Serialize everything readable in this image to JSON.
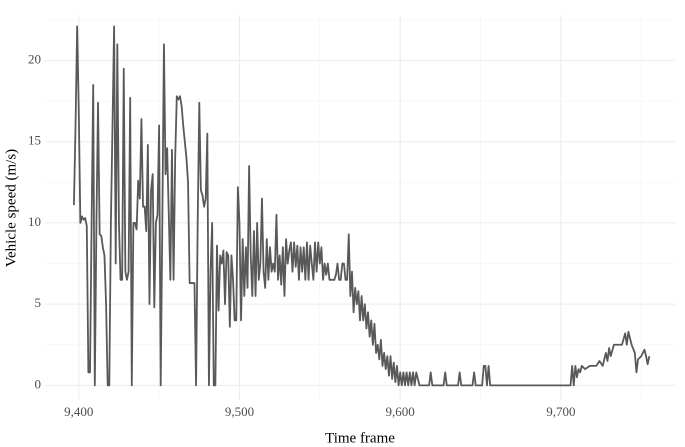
{
  "chart_data": {
    "type": "line",
    "x_label": "Time frame",
    "y_label": "Vehicle speed (m/s)",
    "x": [
      9397,
      9398,
      9399,
      9400,
      9401,
      9402,
      9403,
      9404,
      9405,
      9406,
      9407,
      9408,
      9409,
      9410,
      9411,
      9412,
      9413,
      9414,
      9415,
      9416,
      9417,
      9418,
      9419,
      9420,
      9421,
      9422,
      9423,
      9424,
      9425,
      9426,
      9427,
      9428,
      9429,
      9430,
      9431,
      9432,
      9433,
      9434,
      9435,
      9436,
      9437,
      9438,
      9439,
      9440,
      9441,
      9442,
      9443,
      9444,
      9445,
      9446,
      9447,
      9448,
      9449,
      9450,
      9451,
      9452,
      9453,
      9454,
      9455,
      9456,
      9457,
      9458,
      9459,
      9460,
      9461,
      9462,
      9463,
      9464,
      9465,
      9466,
      9467,
      9468,
      9469,
      9470,
      9471,
      9472,
      9473,
      9474,
      9475,
      9476,
      9477,
      9478,
      9479,
      9480,
      9481,
      9482,
      9483,
      9484,
      9485,
      9486,
      9487,
      9488,
      9489,
      9490,
      9491,
      9492,
      9493,
      9494,
      9495,
      9496,
      9497,
      9498,
      9499,
      9500,
      9501,
      9502,
      9503,
      9504,
      9505,
      9506,
      9507,
      9508,
      9509,
      9510,
      9511,
      9512,
      9513,
      9514,
      9515,
      9516,
      9517,
      9518,
      9519,
      9520,
      9521,
      9522,
      9523,
      9524,
      9525,
      9526,
      9527,
      9528,
      9529,
      9530,
      9531,
      9532,
      9533,
      9534,
      9535,
      9536,
      9537,
      9538,
      9539,
      9540,
      9541,
      9542,
      9543,
      9544,
      9545,
      9546,
      9547,
      9548,
      9549,
      9550,
      9551,
      9552,
      9553,
      9554,
      9555,
      9556,
      9557,
      9558,
      9559,
      9560,
      9561,
      9562,
      9563,
      9564,
      9565,
      9566,
      9567,
      9568,
      9569,
      9570,
      9571,
      9572,
      9573,
      9574,
      9575,
      9576,
      9577,
      9578,
      9579,
      9580,
      9581,
      9582,
      9583,
      9584,
      9585,
      9586,
      9587,
      9588,
      9589,
      9590,
      9591,
      9592,
      9593,
      9594,
      9595,
      9596,
      9597,
      9598,
      9599,
      9600,
      9601,
      9602,
      9603,
      9604,
      9605,
      9606,
      9607,
      9608,
      9609,
      9610,
      9612,
      9618,
      9619,
      9620,
      9627,
      9628,
      9629,
      9636,
      9637,
      9638,
      9645,
      9646,
      9647,
      9651,
      9652,
      9653,
      9654,
      9655,
      9656,
      9706,
      9707,
      9708,
      9709,
      9710,
      9711,
      9712,
      9713,
      9715,
      9718,
      9722,
      9724,
      9726,
      9728,
      9729,
      9730,
      9731,
      9733,
      9735,
      9738,
      9740,
      9741,
      9742,
      9744,
      9746,
      9747,
      9748,
      9750,
      9752,
      9753,
      9754,
      9755
    ],
    "series": [
      {
        "name": "speed",
        "color": "#595959",
        "values": [
          11.1,
          16,
          22.1,
          17,
          10,
          10.4,
          10.2,
          10.3,
          9.8,
          0.8,
          0.8,
          10,
          18.5,
          0,
          10,
          17.4,
          9.3,
          9.2,
          8.5,
          8,
          5,
          0,
          0,
          10,
          16,
          22.1,
          7.5,
          21,
          10,
          6.5,
          6.5,
          19.5,
          7,
          6.5,
          7,
          17.7,
          0,
          10,
          10,
          9.6,
          12.6,
          11.5,
          16.4,
          11,
          11,
          9.5,
          14.8,
          5,
          12,
          13,
          4.8,
          10,
          10.5,
          16,
          0,
          10,
          21,
          13,
          14.6,
          10.6,
          6.5,
          14.5,
          6.5,
          14,
          17.8,
          17.6,
          17.8,
          17.2,
          16,
          15,
          14,
          12.5,
          6.3,
          6.3,
          6.3,
          6.3,
          0,
          10,
          17.4,
          12,
          11.7,
          11,
          11.5,
          15.5,
          0,
          7,
          10,
          0,
          0,
          8.6,
          4.6,
          8,
          7.5,
          8.3,
          5,
          8.2,
          8,
          3.6,
          8,
          6.5,
          4,
          4,
          12.2,
          10,
          4,
          9,
          5.5,
          8.5,
          6,
          13.5,
          8,
          5.5,
          9.5,
          5.5,
          10,
          6.5,
          7.5,
          11.5,
          7,
          6,
          9,
          6.5,
          8.5,
          7,
          7.5,
          7,
          10.5,
          6.5,
          8,
          6.2,
          8.5,
          5.5,
          9,
          7.5,
          8.3,
          8.8,
          7,
          8.8,
          7.3,
          8.6,
          6.5,
          8.5,
          7,
          8.5,
          6.5,
          8.8,
          6.5,
          8.6,
          7.5,
          6.5,
          8.8,
          7,
          8.8,
          7.5,
          8.5,
          6.5,
          7.5,
          6.8,
          7.5,
          6.5,
          6.5,
          6.5,
          6.5,
          6.8,
          7.5,
          6.5,
          6.5,
          7.5,
          7.5,
          6.5,
          6.5,
          9.3,
          5.5,
          7,
          4.5,
          6,
          5,
          5.8,
          4,
          5.5,
          4,
          5,
          3.5,
          4.5,
          3,
          4,
          2.5,
          3.8,
          2,
          2.5,
          1.6,
          2.8,
          1.2,
          2,
          1,
          1.8,
          0.6,
          1.8,
          0.4,
          1.4,
          0.2,
          1.2,
          0,
          0.8,
          0,
          0.8,
          0,
          0.8,
          0,
          0.8,
          0,
          0.8,
          0,
          0.8,
          0,
          0,
          0.8,
          0,
          0,
          0.8,
          0,
          0,
          0.8,
          0,
          0,
          0.8,
          0,
          0,
          1.2,
          1.2,
          0,
          1.2,
          0,
          0,
          1.2,
          0,
          1.2,
          0.5,
          1.0,
          0.8,
          1.2,
          1.0,
          1.2,
          1.2,
          1.5,
          1.2,
          2,
          1.5,
          2.3,
          1.8,
          2.5,
          2.5,
          2.5,
          3.2,
          2.5,
          3.3,
          2.5,
          2,
          0.8,
          1.6,
          1.8,
          2.2,
          1.8,
          1.3,
          1.8
        ]
      }
    ],
    "xlim": [
      9379,
      9771
    ],
    "ylim": [
      -0.9,
      22.8
    ],
    "xticks": [
      {
        "value": 9400,
        "label": "9,400"
      },
      {
        "value": 9500,
        "label": "9,500"
      },
      {
        "value": 9600,
        "label": "9,600"
      },
      {
        "value": 9700,
        "label": "9,700"
      }
    ],
    "yticks": [
      0,
      5,
      10,
      15,
      20
    ],
    "grid": true
  }
}
